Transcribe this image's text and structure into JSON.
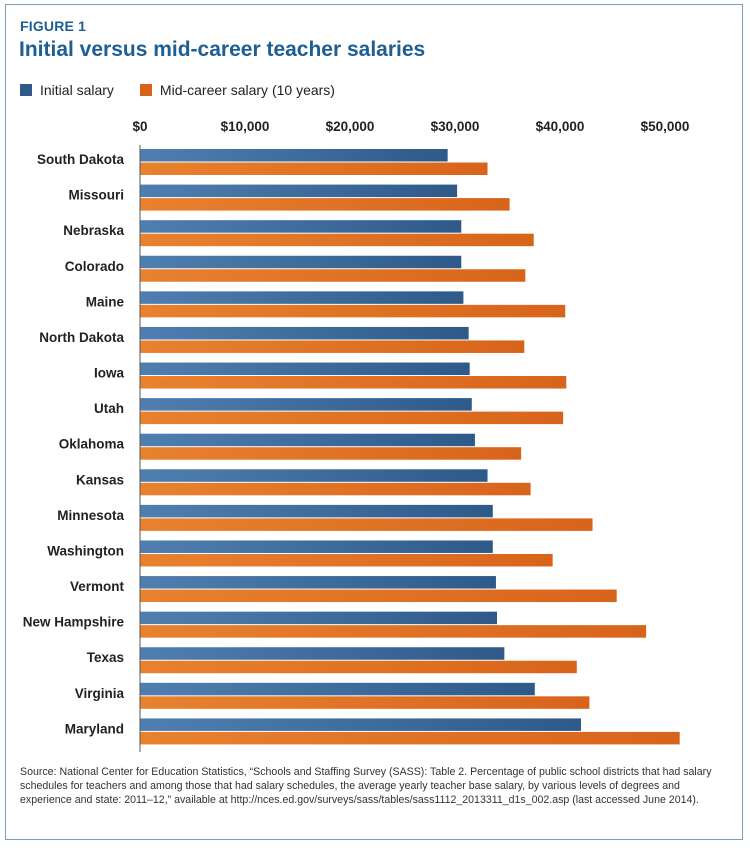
{
  "figure_label": "FIGURE 1",
  "colors": {
    "initial": "#2e5a8a",
    "mid": "#d8641b",
    "accent": "#1d5e93"
  },
  "source_note": "Source: National Center for Education Statistics, “Schools and Staffing Survey (SASS): Table 2. Percentage of public school districts that had salary schedules for teachers and among those that had salary schedules, the average yearly teacher base salary, by various levels of degrees and experience and state: 2011–12,” available at http://nces.ed.gov/surveys/sass/tables/sass1112_2013311_d1s_002.asp (last accessed June 2014).",
  "chart_data": {
    "type": "bar",
    "orientation": "horizontal",
    "title": "Initial versus mid-career teacher salaries",
    "xlim": [
      0,
      52000
    ],
    "x_ticks": [
      0,
      10000,
      20000,
      30000,
      40000,
      50000
    ],
    "x_tick_labels": [
      "$0",
      "$10,000",
      "$20,000",
      "$30,000",
      "$40,000",
      "$50,000"
    ],
    "grid": false,
    "legend_position": "top-left",
    "categories": [
      "South Dakota",
      "Missouri",
      "Nebraska",
      "Colorado",
      "Maine",
      "North Dakota",
      "Iowa",
      "Utah",
      "Oklahoma",
      "Kansas",
      "Minnesota",
      "Washington",
      "Vermont",
      "New Hampshire",
      "Texas",
      "Virginia",
      "Maryland"
    ],
    "series": [
      {
        "name": "Initial salary",
        "values": [
          29300,
          30200,
          30600,
          30600,
          30800,
          31300,
          31400,
          31600,
          31900,
          33100,
          33600,
          33600,
          33900,
          34000,
          34700,
          37600,
          42000
        ]
      },
      {
        "name": "Mid-career salary (10 years)",
        "values": [
          33100,
          35200,
          37500,
          36700,
          40500,
          36600,
          40600,
          40300,
          36300,
          37200,
          43100,
          39300,
          45400,
          48200,
          41600,
          42800,
          51400
        ]
      }
    ]
  }
}
